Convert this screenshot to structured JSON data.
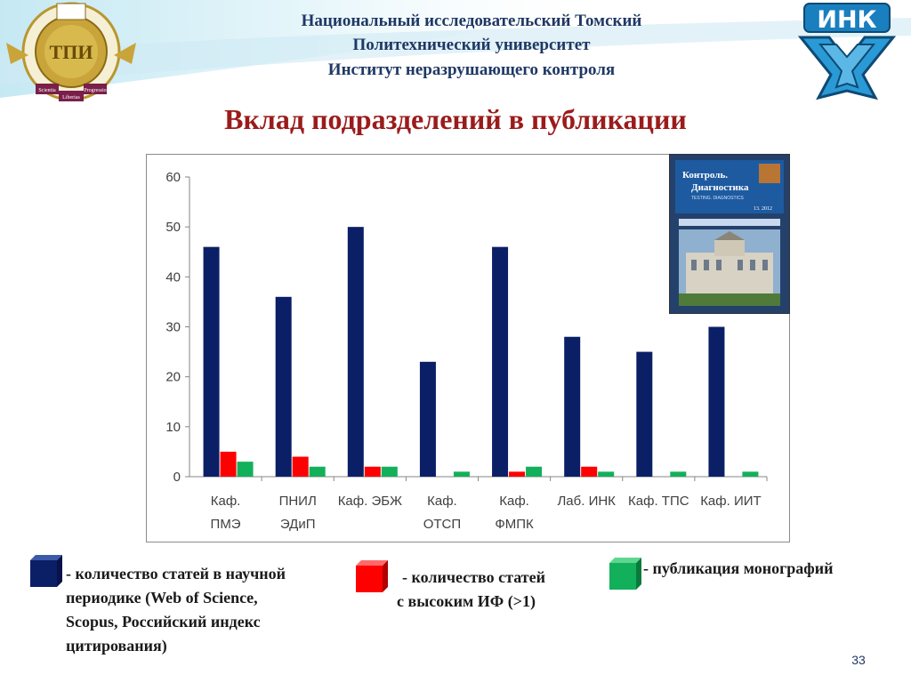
{
  "header": {
    "line1": "Национальный исследовательский Томский",
    "line2": "Политехнический  университет",
    "line3": "Институт неразрушающего контроля"
  },
  "title": "Вклад подразделений в публикации",
  "logo_left": {
    "icon": "university-seal-icon",
    "words": [
      "Scientia",
      "Liberias",
      "Progressio"
    ],
    "monogram": "ТПИ"
  },
  "logo_right": {
    "icon": "ink-logo-icon",
    "text": "ИНК"
  },
  "journal_cover": {
    "title": "Контроль. Диагностика",
    "subtitle": "TESTING. DIAGNOSTICS",
    "issue": "13. 2012"
  },
  "colors": {
    "articles": "#0b1f66",
    "high_if": "#ff0000",
    "monographs": "#12b05a",
    "title": "#9b1b1b",
    "header": "#1f3864"
  },
  "chart_data": {
    "type": "bar",
    "categories": [
      [
        "Каф.",
        "ПМЭ"
      ],
      [
        "ПНИЛ",
        "ЭДиП"
      ],
      [
        "Каф. ЭБЖ"
      ],
      [
        "Каф.",
        "ОТСП"
      ],
      [
        "Каф.",
        "ФМПК"
      ],
      [
        "Лаб. ИНК"
      ],
      [
        "Каф. ТПС"
      ],
      [
        "Каф. ИИТ"
      ]
    ],
    "series": [
      {
        "key": "articles",
        "values": [
          46,
          36,
          50,
          23,
          46,
          28,
          25,
          30
        ]
      },
      {
        "key": "high_if",
        "values": [
          5,
          4,
          2,
          0,
          1,
          2,
          0,
          0
        ]
      },
      {
        "key": "monographs",
        "values": [
          3,
          2,
          2,
          1,
          2,
          1,
          1,
          1
        ]
      }
    ],
    "ylim": [
      0,
      60
    ],
    "yticks": [
      "0",
      "10",
      "20",
      "30",
      "40",
      "50",
      "60"
    ],
    "grid": false
  },
  "legend": {
    "articles": [
      "- количество статей в научной",
      "периодике (Web of Science,",
      "Scopus, Российский индекс",
      "цитирования)"
    ],
    "high_if": [
      "- количество статей",
      "с высоким ИФ (>1)"
    ],
    "monographs": [
      "- публикация монографий"
    ]
  },
  "page_number": "33"
}
